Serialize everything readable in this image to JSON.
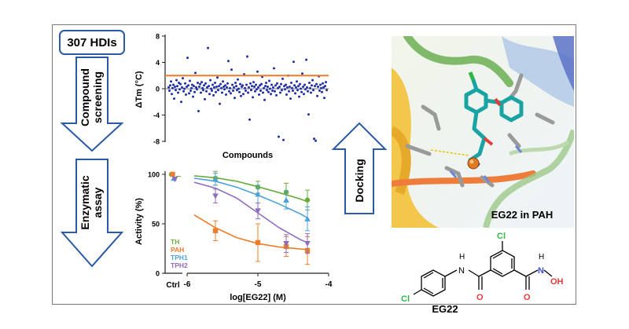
{
  "workflow": {
    "start": "307 HDIs",
    "screen_label": [
      "Compound",
      "screening"
    ],
    "assay_label": [
      "Enzymatic",
      "assay"
    ],
    "docking_label": "Docking"
  },
  "panel_protein": {
    "caption": "EG22 in PAH"
  },
  "panel_structure": {
    "name": "EG22",
    "atoms": {
      "cl": "Cl",
      "n": "N",
      "h": "H",
      "o": "O",
      "oh": "OH"
    }
  },
  "colors": {
    "arrow": "#2a5aa7",
    "hdi_border": "#2a5aa7",
    "scatter_point": "#1f2fa8",
    "threshold": "#ef7d2d",
    "TH": "#6aab3c",
    "PAH": "#ee7d2b",
    "TPH1": "#4da2db",
    "TPH2": "#8d6bbf"
  },
  "chart_data": [
    {
      "type": "scatter",
      "title": "",
      "xlabel": "Compounds",
      "ylabel": "ΔTm (°C)",
      "ylim": [
        -8,
        8
      ],
      "yticks": [
        "8",
        "4",
        "0",
        "-4",
        "-8"
      ],
      "grid": false,
      "threshold_line": 2,
      "series": [
        {
          "values": [
            0.2,
            -0.3,
            0.5,
            1.1,
            -0.8,
            0.1,
            0.6,
            -1.5,
            0.3,
            -0.2,
            1.3,
            0.4,
            -0.6,
            0.9,
            -0.1,
            0.7,
            -2.0,
            0.2,
            1.6,
            -0.4,
            0.0,
            0.8,
            -0.9,
            0.3,
            4.7,
            0.5,
            -0.7,
            1.2,
            -0.3,
            0.1,
            0.6,
            -1.2,
            0.4,
            -0.5,
            2.4,
            0.2,
            -0.1,
            0.9,
            -3.4,
            0.3,
            0.7,
            -0.6,
            1.0,
            0.1,
            -0.2,
            0.5,
            -1.6,
            0.8,
            -0.4,
            0.2,
            6.2,
            0.4,
            -0.8,
            1.3,
            0.0,
            -0.3,
            0.6,
            -1.0,
            0.2,
            0.9,
            -0.5,
            0.3,
            1.7,
            -0.2,
            0.4,
            -2.3,
            0.7,
            0.1,
            -0.6,
            1.1,
            0.3,
            -0.1,
            0.5,
            -0.9,
            0.2,
            0.8,
            4.2,
            -0.4,
            0.1,
            -0.7,
            2.9,
            0.6,
            -0.3,
            0.2,
            -1.4,
            0.9,
            0.4,
            -0.2,
            1.4,
            0.0,
            -0.5,
            0.7,
            -1.1,
            0.3,
            0.5,
            -0.8,
            2.2,
            0.1,
            -0.3,
            0.6,
            4.9,
            -0.6,
            0.2,
            -4.7,
            0.8,
            -0.2,
            0.4,
            -1.3,
            1.0,
            0.3,
            -0.4,
            0.6,
            -0.1,
            2.6,
            0.2,
            -0.9,
            0.5,
            -0.3,
            0.7,
            1.8,
            -0.6,
            0.1,
            -1.7,
            0.4,
            0.9,
            -0.2,
            0.3,
            -0.5,
            1.2,
            0.0,
            -0.8,
            0.6,
            -0.3,
            0.2,
            3.1,
            -0.4,
            0.5,
            -1.0,
            0.8,
            0.1,
            -7.3,
            0.3,
            -0.6,
            0.7,
            -0.2,
            1.5,
            -7.8,
            0.4,
            -0.1,
            0.6,
            -0.9,
            0.2,
            2.0,
            -0.4,
            0.3,
            -1.5,
            0.9,
            0.1,
            -0.3,
            4.1,
            0.5,
            -0.7,
            0.2,
            1.1,
            -0.2,
            0.4,
            -1.2,
            0.7,
            0.0,
            -0.5,
            2.3,
            0.3,
            -0.8,
            0.6,
            -0.1,
            4.4,
            0.2,
            -0.4,
            -3.9,
            0.9,
            0.1,
            -0.6,
            0.5,
            1.3,
            -0.2,
            -7.6,
            0.4,
            -7.9,
            0.7,
            -1.1,
            0.3,
            1.9,
            -0.3,
            0.6,
            0.1,
            -0.5,
            0.8,
            0.2,
            -1.4,
            0.4,
            1.0,
            -0.2
          ]
        }
      ]
    },
    {
      "type": "line",
      "title": "",
      "xlabel": "log[EG22] (M)",
      "ylabel": "Activity (%)",
      "xlim": [
        -6,
        -4
      ],
      "ylim": [
        0,
        100
      ],
      "xticks": [
        "-6",
        "-5",
        "-4"
      ],
      "yticks": [
        "100",
        "50",
        "0"
      ],
      "ctrl_label": "Ctrl",
      "legend": "bottom-left",
      "series": [
        {
          "name": "TH",
          "x": [
            -5.6,
            -5.0,
            -4.6,
            -4.3
          ],
          "y": [
            96,
            87,
            82,
            74
          ],
          "err": [
            7,
            6,
            9,
            10
          ],
          "marker": "circle",
          "ctrl": 100,
          "fit_x": [
            -5.9,
            -5.6,
            -5.3,
            -5.0,
            -4.7,
            -4.4,
            -4.3
          ],
          "fit_y": [
            98.5,
            96.5,
            93,
            87.5,
            81.5,
            75,
            72.5
          ]
        },
        {
          "name": "PAH",
          "x": [
            -5.6,
            -5.0,
            -4.6,
            -4.3
          ],
          "y": [
            43,
            31,
            27,
            23
          ],
          "err": [
            10,
            19,
            10,
            14
          ],
          "marker": "square",
          "ctrl": 100,
          "fit_x": [
            -5.9,
            -5.6,
            -5.3,
            -5.0,
            -4.7,
            -4.4,
            -4.3
          ],
          "fit_y": [
            59,
            46,
            36,
            30,
            26.5,
            24.5,
            24
          ]
        },
        {
          "name": "TPH1",
          "x": [
            -5.6,
            -5.0,
            -4.6,
            -4.3
          ],
          "y": [
            95,
            80,
            74,
            55
          ],
          "err": [
            6,
            9,
            9,
            12
          ],
          "marker": "triangle",
          "ctrl": 96,
          "fit_x": [
            -5.9,
            -5.6,
            -5.3,
            -5.0,
            -4.7,
            -4.4,
            -4.3
          ],
          "fit_y": [
            96,
            93,
            87,
            79,
            70,
            60,
            56
          ]
        },
        {
          "name": "TPH2",
          "x": [
            -5.6,
            -5.0,
            -4.6,
            -4.3
          ],
          "y": [
            78,
            63,
            30,
            30
          ],
          "err": [
            7,
            8,
            9,
            10
          ],
          "marker": "triangle-down",
          "ctrl": 95,
          "fit_x": [
            -5.9,
            -5.6,
            -5.3,
            -5.0,
            -4.7,
            -4.4,
            -4.3
          ],
          "fit_y": [
            92,
            86,
            76,
            61,
            46,
            34,
            31
          ]
        }
      ]
    }
  ]
}
